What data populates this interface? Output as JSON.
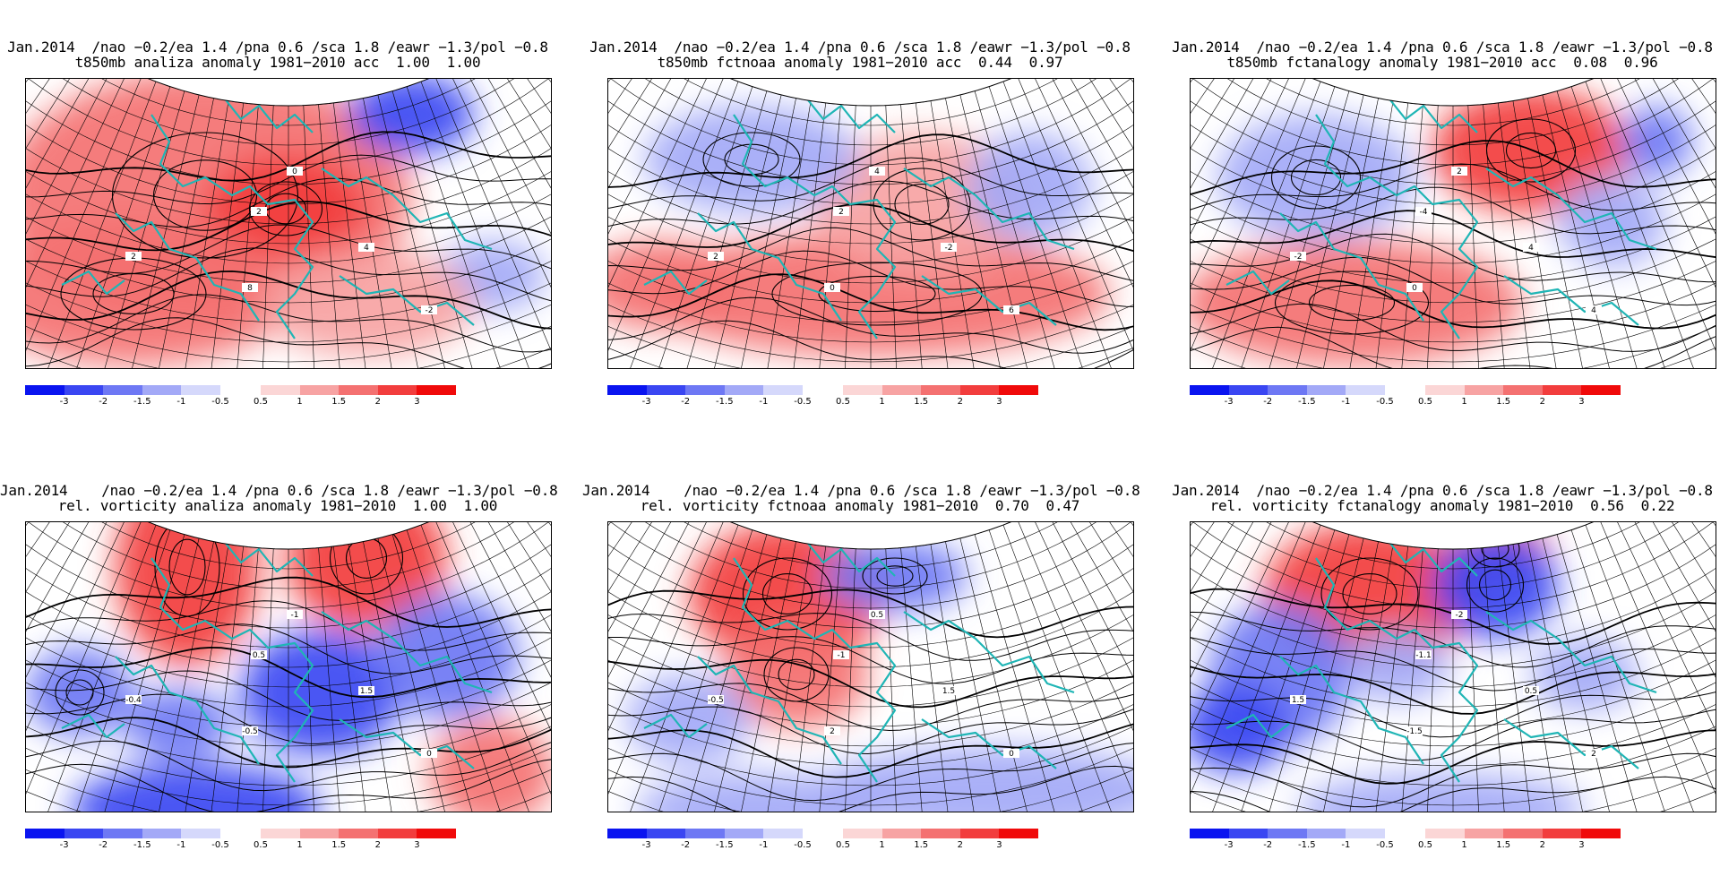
{
  "panels": [
    {
      "title_line1": "Jan.2014  /nao −0.2/ea 1.4 /pna 0.6 /sca 1.8 /eawr −1.3/pol −0.8",
      "title_line2": "t850mb analiza anomaly 1981−2010 acc  1.00  1.00",
      "field": "t850",
      "model": "analiza"
    },
    {
      "title_line1": "Jan.2014  /nao −0.2/ea 1.4 /pna 0.6 /sca 1.8 /eawr −1.3/pol −0.8",
      "title_line2": "t850mb fctnoaa anomaly 1981−2010 acc  0.44  0.97",
      "field": "t850",
      "model": "fctnoaa"
    },
    {
      "title_line1": "Jan.2014  /nao −0.2/ea 1.4 /pna 0.6 /sca 1.8 /eawr −1.3/pol −0.8",
      "title_line2": "t850mb fctanalogy anomaly 1981−2010 acc  0.08  0.96",
      "field": "t850",
      "model": "fctanalogy"
    },
    {
      "title_line1": "Jan.2014    /nao −0.2/ea 1.4 /pna 0.6 /sca 1.8 /eawr −1.3/pol −0.8",
      "title_line2": "rel. vorticity analiza anomaly 1981−2010  1.00  1.00",
      "field": "vort",
      "model": "analiza"
    },
    {
      "title_line1": "Jan.2014    /nao −0.2/ea 1.4 /pna 0.6 /sca 1.8 /eawr −1.3/pol −0.8",
      "title_line2": "rel. vorticity fctnoaa anomaly 1981−2010  0.70  0.47",
      "field": "vort",
      "model": "fctnoaa"
    },
    {
      "title_line1": "Jan.2014  /nao −0.2/ea 1.4 /pna 0.6 /sca 1.8 /eawr −1.3/pol −0.8",
      "title_line2": "rel. vorticity fctanalogy anomaly 1981−2010  0.56  0.22",
      "field": "vort",
      "model": "fctanalogy"
    }
  ],
  "colorbar": {
    "negative_colors": [
      "#0a14f0",
      "#3a46f2",
      "#6e78f4",
      "#a3a9f7",
      "#d5d8fb"
    ],
    "positive_colors": [
      "#fbd6d6",
      "#f7a3a3",
      "#f47171",
      "#f23d3d",
      "#f00a0a"
    ],
    "negative_ticks": [
      "-3",
      "-2",
      "-1.5",
      "-1",
      "-0.5"
    ],
    "positive_ticks": [
      "0.5",
      "1",
      "1.5",
      "2",
      "3"
    ]
  },
  "colors": {
    "coast": "#1fb5b5",
    "contour": "#000000",
    "grid": "#000000"
  },
  "anomaly_cells": [
    {
      "panel": 0,
      "sign": "positive",
      "level": 3,
      "near": "central Europe"
    },
    {
      "panel": 0,
      "sign": "negative",
      "level": 3,
      "near": "northeast corner"
    },
    {
      "panel": 1,
      "sign": "positive",
      "level": 2,
      "near": "southern band"
    },
    {
      "panel": 2,
      "sign": "positive",
      "level": 3,
      "near": "northeast"
    },
    {
      "panel": 3,
      "sign": "positive",
      "level": 4,
      "near": "northwest"
    },
    {
      "panel": 3,
      "sign": "negative",
      "level": 4,
      "near": "central south"
    },
    {
      "panel": 4,
      "sign": "positive",
      "level": 4,
      "near": "northwest"
    },
    {
      "panel": 4,
      "sign": "negative",
      "level": 3,
      "near": "north center"
    },
    {
      "panel": 5,
      "sign": "positive",
      "level": 4,
      "near": "northwest"
    },
    {
      "panel": 5,
      "sign": "negative",
      "level": 4,
      "near": "northeast"
    }
  ]
}
